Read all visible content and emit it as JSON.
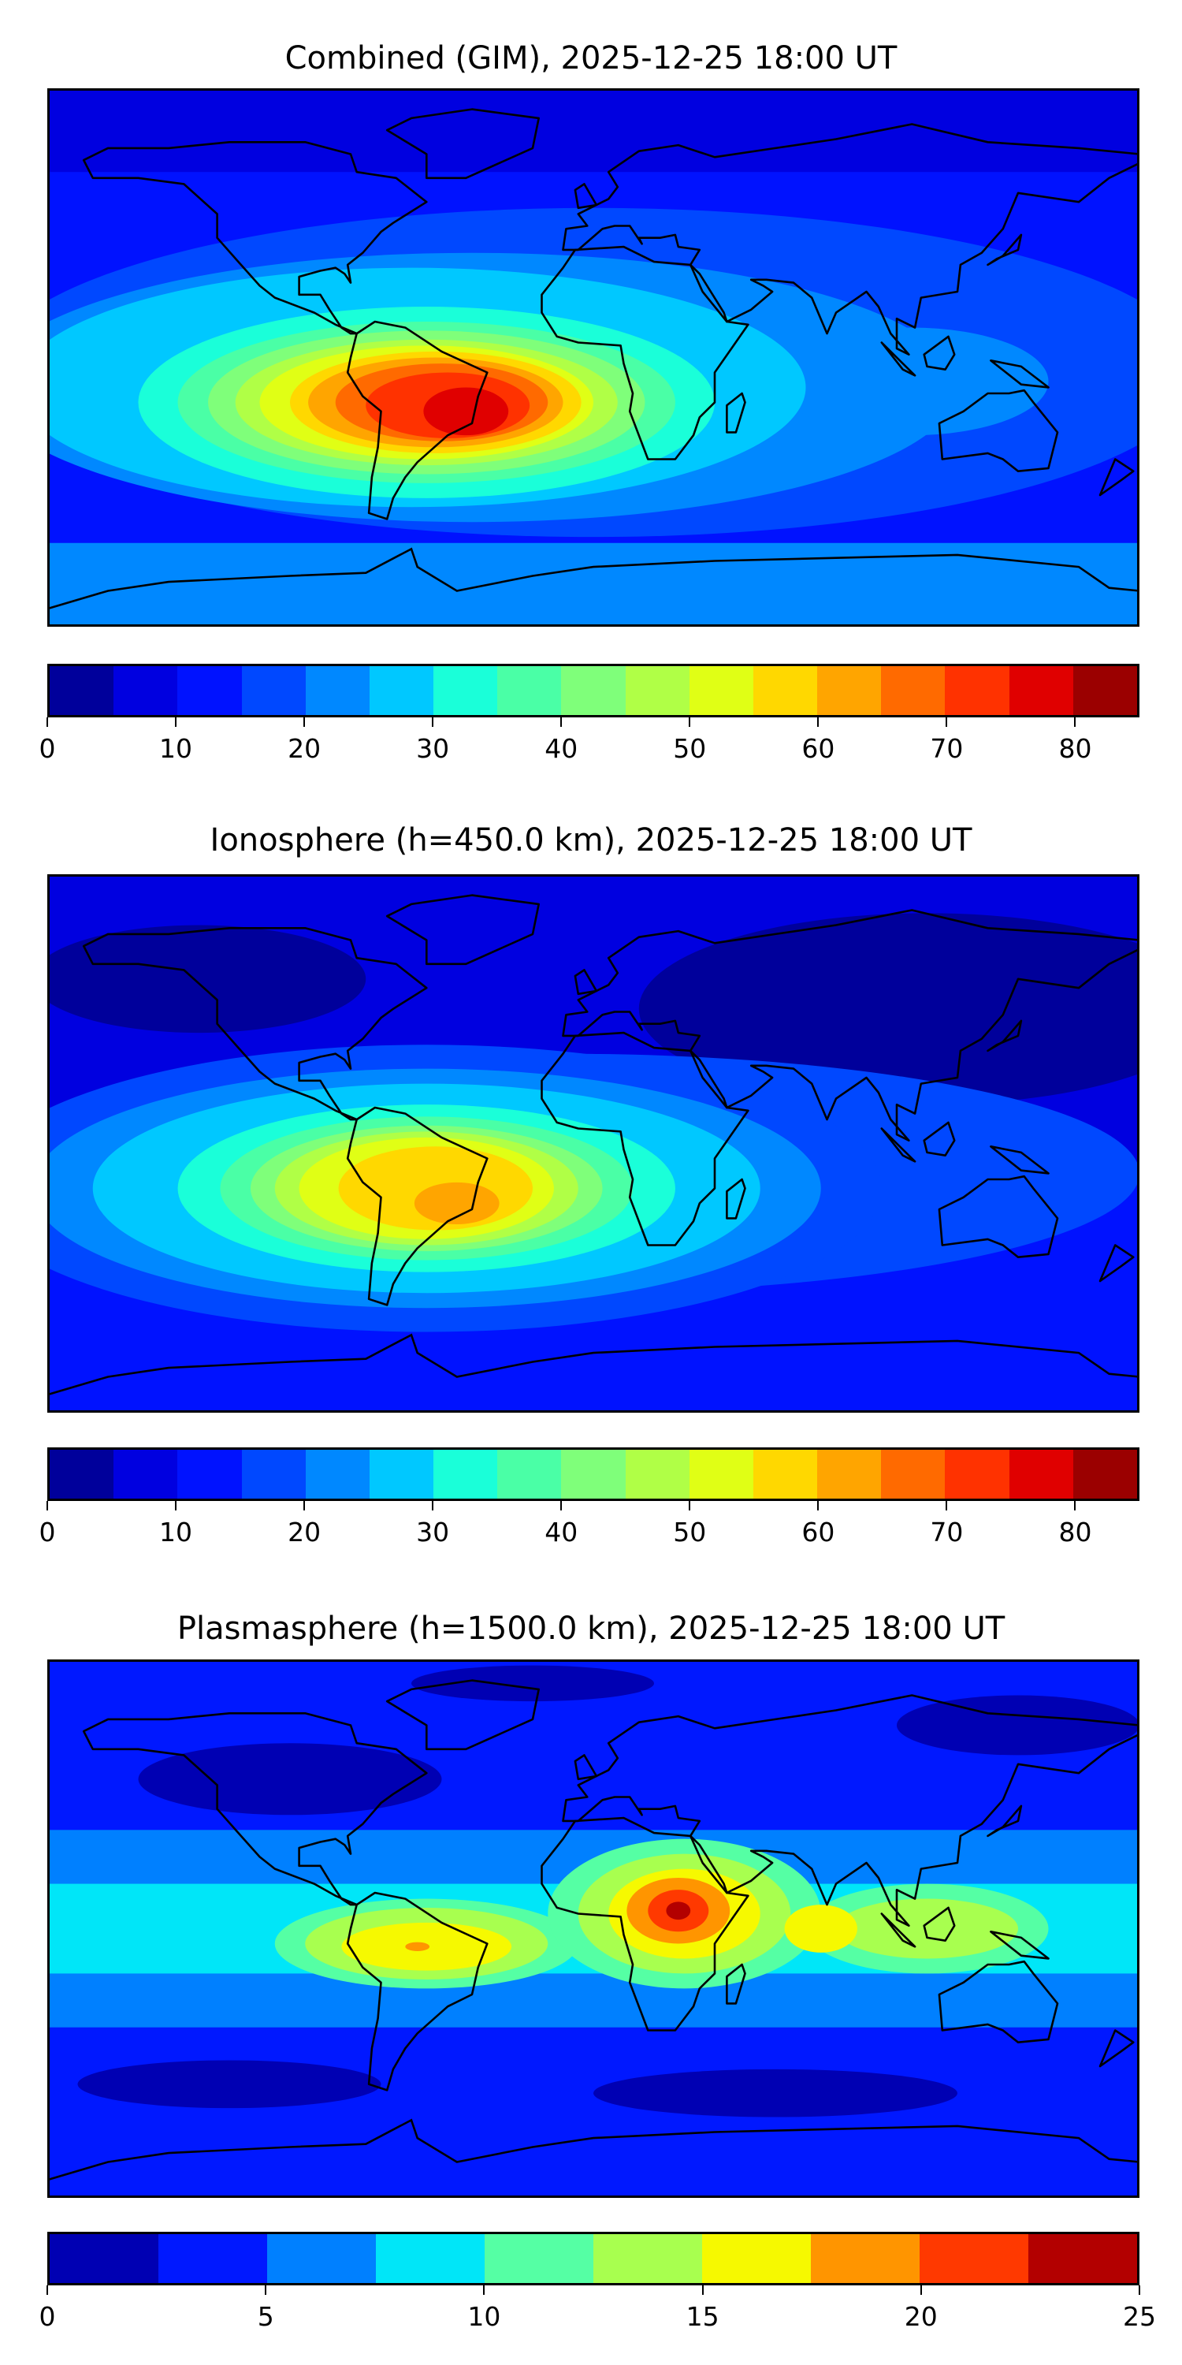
{
  "chart_data": [
    {
      "type": "heatmap",
      "title": "Combined (GIM), 2025-12-25 18:00 UT",
      "projection": "global lon/lat map with coastlines",
      "colorbar": {
        "range": [
          0,
          85
        ],
        "levels": [
          0,
          5,
          10,
          15,
          20,
          25,
          30,
          35,
          40,
          45,
          50,
          55,
          60,
          65,
          70,
          75,
          80,
          85
        ],
        "ticks": [
          0,
          10,
          20,
          30,
          40,
          50,
          60,
          70,
          80
        ],
        "colors": [
          "#00009b",
          "#0000e0",
          "#0012ff",
          "#0048ff",
          "#0088ff",
          "#00c8ff",
          "#1affd9",
          "#4affa6",
          "#7fff7a",
          "#b0ff46",
          "#e0ff15",
          "#ffd800",
          "#ffa500",
          "#ff6a00",
          "#ff3200",
          "#e00000",
          "#9b0000"
        ]
      },
      "peak_region": "South America, 75-80 level"
    },
    {
      "type": "heatmap",
      "title": "Ionosphere  (h=450.0 km), 2025-12-25 18:00 UT",
      "projection": "global lon/lat map with coastlines",
      "colorbar": {
        "range": [
          0,
          85
        ],
        "levels": [
          0,
          5,
          10,
          15,
          20,
          25,
          30,
          35,
          40,
          45,
          50,
          55,
          60,
          65,
          70,
          75,
          80,
          85
        ],
        "ticks": [
          0,
          10,
          20,
          30,
          40,
          50,
          60,
          70,
          80
        ],
        "colors": [
          "#00009b",
          "#0000e0",
          "#0012ff",
          "#0048ff",
          "#0088ff",
          "#00c8ff",
          "#1affd9",
          "#4affa6",
          "#7fff7a",
          "#b0ff46",
          "#e0ff15",
          "#ffd800",
          "#ffa500",
          "#ff6a00",
          "#ff3200",
          "#e00000",
          "#9b0000"
        ]
      },
      "peak_region": "South America, 60-65 level"
    },
    {
      "type": "heatmap",
      "title": "Plasmasphere (h=1500.0 km), 2025-12-25 18:00 UT",
      "projection": "global lon/lat map with coastlines",
      "colorbar": {
        "range": [
          0,
          25
        ],
        "levels": [
          0,
          2.5,
          5,
          7.5,
          10,
          12.5,
          15,
          17.5,
          20,
          22.5,
          25
        ],
        "ticks": [
          0,
          5,
          10,
          15,
          20,
          25
        ],
        "colors": [
          "#0000b3",
          "#0018ff",
          "#0080ff",
          "#00e6f8",
          "#55ffa4",
          "#a8ff4f",
          "#f6f900",
          "#ff9500",
          "#ff3900",
          "#b30000"
        ]
      },
      "peak_region": "East Africa, 22.5-25 level"
    }
  ]
}
